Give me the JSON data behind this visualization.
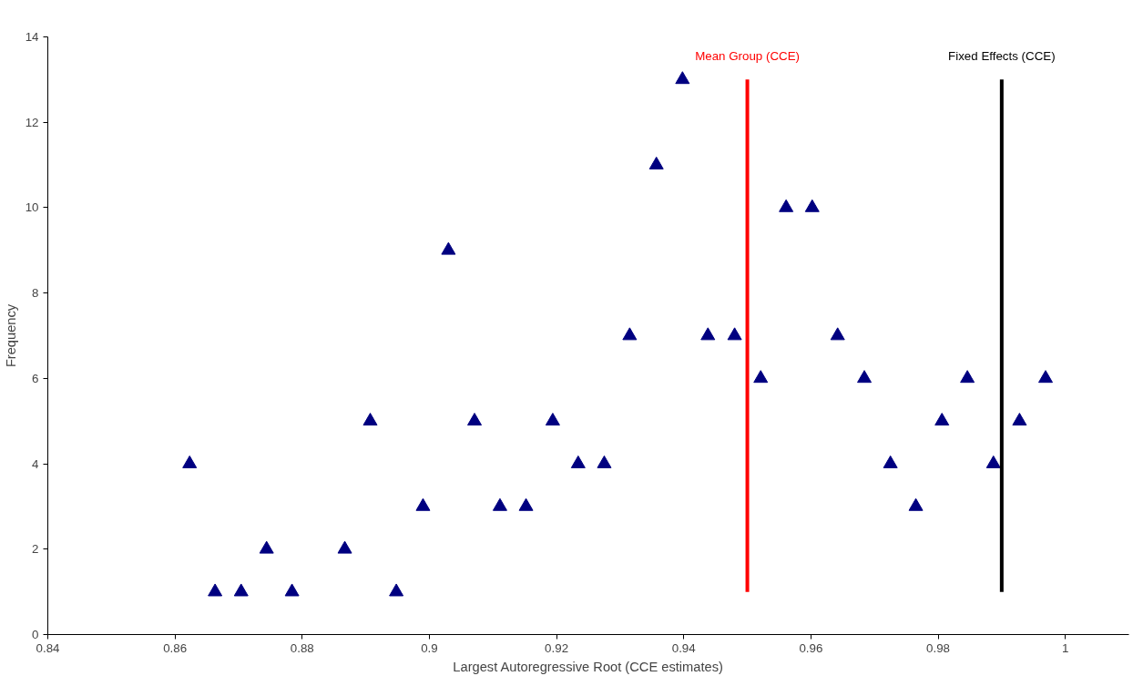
{
  "chart_data": {
    "type": "scatter",
    "xlabel": "Largest Autoregressive Root (CCE estimates)",
    "ylabel": "Frequency",
    "xlim": [
      0.84,
      1.01
    ],
    "xticks": [
      {
        "value": 0.84,
        "label": "0.84"
      },
      {
        "value": 0.86,
        "label": "0.86"
      },
      {
        "value": 0.88,
        "label": "0.88"
      },
      {
        "value": 0.9,
        "label": "0.9"
      },
      {
        "value": 0.92,
        "label": "0.92"
      },
      {
        "value": 0.94,
        "label": "0.94"
      },
      {
        "value": 0.96,
        "label": "0.96"
      },
      {
        "value": 0.98,
        "label": "0.98"
      },
      {
        "value": 1,
        "label": "1"
      }
    ],
    "ylim": [
      0,
      14
    ],
    "yticks": [
      0,
      2,
      4,
      6,
      8,
      10,
      12,
      14
    ],
    "grid": false,
    "series": [
      {
        "type": "scatter",
        "marker": "triangle",
        "color": "#000080",
        "x": [
          0.8623,
          0.8663,
          0.8704,
          0.8744,
          0.8784,
          0.8867,
          0.8907,
          0.8948,
          0.899,
          0.903,
          0.9071,
          0.9111,
          0.9152,
          0.9194,
          0.9234,
          0.9275,
          0.9315,
          0.9357,
          0.9398,
          0.9438,
          0.948,
          0.9521,
          0.9561,
          0.9602,
          0.9642,
          0.9684,
          0.9725,
          0.9765,
          0.9806,
          0.9846,
          0.9887,
          0.9928,
          0.9969
        ],
        "values": [
          4,
          1,
          1,
          2,
          1,
          2,
          5,
          1,
          3,
          9,
          5,
          3,
          3,
          5,
          4,
          4,
          7,
          11,
          13,
          7,
          7,
          6,
          10,
          10,
          7,
          6,
          4,
          3,
          5,
          6,
          4,
          5,
          6
        ]
      },
      {
        "type": "line",
        "marker": "none",
        "name": "Mean Group (CCE)",
        "color": "#ff0000",
        "x": [
          0.95,
          0.95
        ],
        "values": [
          1,
          13
        ]
      },
      {
        "type": "line",
        "marker": "none",
        "name": "Fixed Effects (CCE)",
        "color": "#000000",
        "x": [
          0.99,
          0.99
        ],
        "values": [
          1,
          13
        ]
      }
    ]
  }
}
